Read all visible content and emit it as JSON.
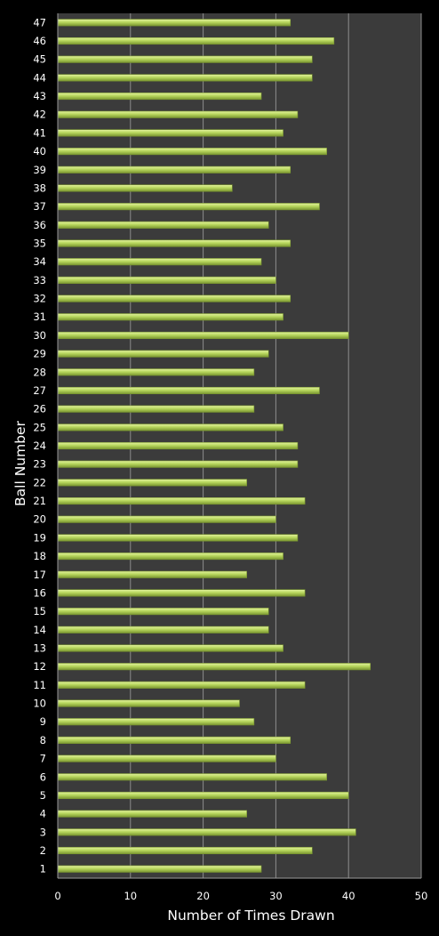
{
  "chart_data": {
    "type": "bar",
    "orientation": "horizontal",
    "title": "",
    "xlabel": "Number of Times Drawn",
    "ylabel": "Ball Number",
    "xlim": [
      0,
      50
    ],
    "xticks": [
      0,
      10,
      20,
      30,
      40,
      50
    ],
    "grid": true,
    "legend": "none",
    "categories": [
      "1",
      "2",
      "3",
      "4",
      "5",
      "6",
      "7",
      "8",
      "9",
      "10",
      "11",
      "12",
      "13",
      "14",
      "15",
      "16",
      "17",
      "18",
      "19",
      "20",
      "21",
      "22",
      "23",
      "24",
      "25",
      "26",
      "27",
      "28",
      "29",
      "30",
      "31",
      "32",
      "33",
      "34",
      "35",
      "36",
      "37",
      "38",
      "39",
      "40",
      "41",
      "42",
      "43",
      "44",
      "45",
      "46",
      "47"
    ],
    "values": [
      28,
      35,
      41,
      26,
      40,
      37,
      30,
      32,
      27,
      25,
      34,
      43,
      31,
      29,
      29,
      34,
      26,
      31,
      33,
      30,
      34,
      26,
      33,
      33,
      31,
      27,
      36,
      27,
      29,
      40,
      31,
      32,
      30,
      28,
      32,
      29,
      36,
      24,
      32,
      37,
      31,
      33,
      28,
      35,
      35,
      38,
      32
    ]
  },
  "colors": {
    "background": "#000000",
    "plot_area": "#3b3b3b",
    "gridline": "#8c8c8c",
    "bar_light": "#e3f29e",
    "bar_mid": "#b8d75e",
    "bar_dark": "#7a9630",
    "text": "#ffffff"
  }
}
